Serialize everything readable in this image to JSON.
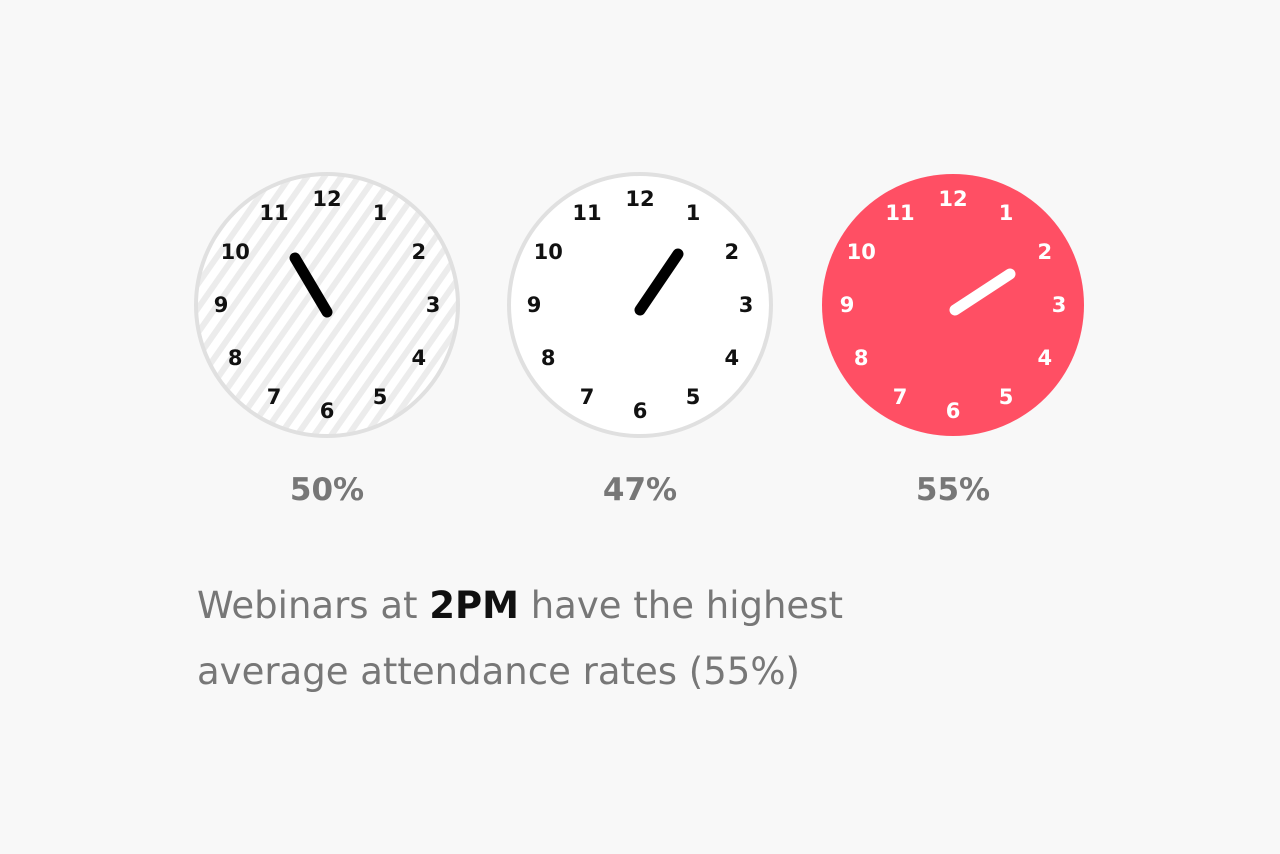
{
  "dial": [
    "12",
    "1",
    "2",
    "3",
    "4",
    "5",
    "6",
    "7",
    "8",
    "9",
    "10",
    "11"
  ],
  "clocks": [
    {
      "label": "50%"
    },
    {
      "label": "47%"
    },
    {
      "label": "55%"
    }
  ],
  "caption": {
    "line1": [
      "Webinars at ",
      "2PM",
      " have the highest"
    ],
    "line2": "average attendance rates (55%)"
  }
}
